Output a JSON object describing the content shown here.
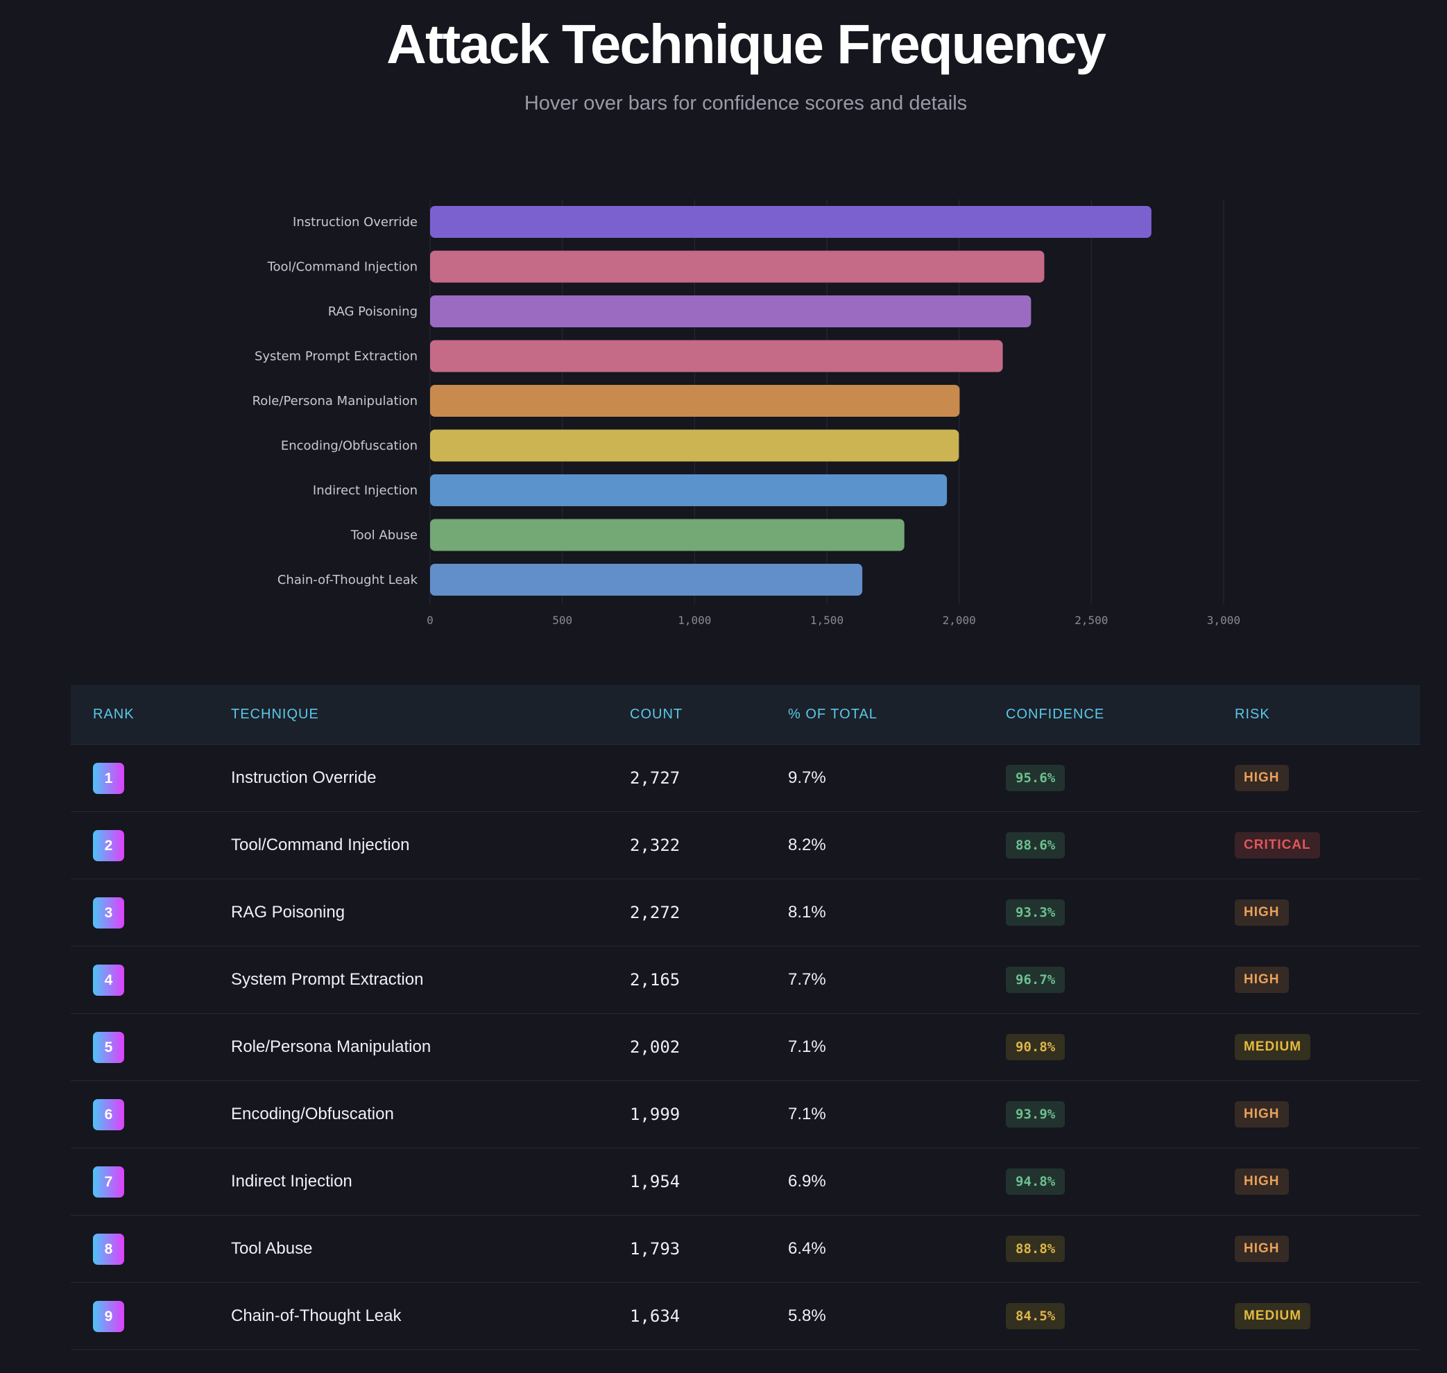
{
  "header": {
    "title": "Attack Technique Frequency",
    "subtitle": "Hover over bars for confidence scores and details"
  },
  "chart_data": {
    "type": "bar",
    "orientation": "horizontal",
    "categories": [
      "Instruction Override",
      "Tool/Command Injection",
      "RAG Poisoning",
      "System Prompt Extraction",
      "Role/Persona Manipulation",
      "Encoding/Obfuscation",
      "Indirect Injection",
      "Tool Abuse",
      "Chain-of-Thought Leak"
    ],
    "values": [
      2727,
      2322,
      2272,
      2165,
      2002,
      1999,
      1954,
      1793,
      1634
    ],
    "colors": [
      "#7b61d0",
      "#c56a87",
      "#9b6bc2",
      "#c56a87",
      "#c88a4d",
      "#ccb452",
      "#5b93cc",
      "#74a874",
      "#628fca"
    ],
    "xlim": [
      0,
      3000
    ],
    "xticks": [
      0,
      500,
      1000,
      1500,
      2000,
      2500,
      3000
    ],
    "xtick_labels": [
      "0",
      "500",
      "1,000",
      "1,500",
      "2,000",
      "2,500",
      "3,000"
    ],
    "grid": true
  },
  "table": {
    "headers": [
      "RANK",
      "TECHNIQUE",
      "COUNT",
      "% OF TOTAL",
      "CONFIDENCE",
      "RISK"
    ],
    "rows": [
      {
        "rank": "1",
        "technique": "Instruction Override",
        "count": "2,727",
        "pct": "9.7%",
        "confidence": "95.6%",
        "conf_level": "g",
        "risk": "HIGH"
      },
      {
        "rank": "2",
        "technique": "Tool/Command Injection",
        "count": "2,322",
        "pct": "8.2%",
        "confidence": "88.6%",
        "conf_level": "g",
        "risk": "CRITICAL"
      },
      {
        "rank": "3",
        "technique": "RAG Poisoning",
        "count": "2,272",
        "pct": "8.1%",
        "confidence": "93.3%",
        "conf_level": "g",
        "risk": "HIGH"
      },
      {
        "rank": "4",
        "technique": "System Prompt Extraction",
        "count": "2,165",
        "pct": "7.7%",
        "confidence": "96.7%",
        "conf_level": "g",
        "risk": "HIGH"
      },
      {
        "rank": "5",
        "technique": "Role/Persona Manipulation",
        "count": "2,002",
        "pct": "7.1%",
        "confidence": "90.8%",
        "conf_level": "y",
        "risk": "MEDIUM"
      },
      {
        "rank": "6",
        "technique": "Encoding/Obfuscation",
        "count": "1,999",
        "pct": "7.1%",
        "confidence": "93.9%",
        "conf_level": "g",
        "risk": "HIGH"
      },
      {
        "rank": "7",
        "technique": "Indirect Injection",
        "count": "1,954",
        "pct": "6.9%",
        "confidence": "94.8%",
        "conf_level": "g",
        "risk": "HIGH"
      },
      {
        "rank": "8",
        "technique": "Tool Abuse",
        "count": "1,793",
        "pct": "6.4%",
        "confidence": "88.8%",
        "conf_level": "y",
        "risk": "HIGH"
      },
      {
        "rank": "9",
        "technique": "Chain-of-Thought Leak",
        "count": "1,634",
        "pct": "5.8%",
        "confidence": "84.5%",
        "conf_level": "y",
        "risk": "MEDIUM"
      }
    ]
  }
}
